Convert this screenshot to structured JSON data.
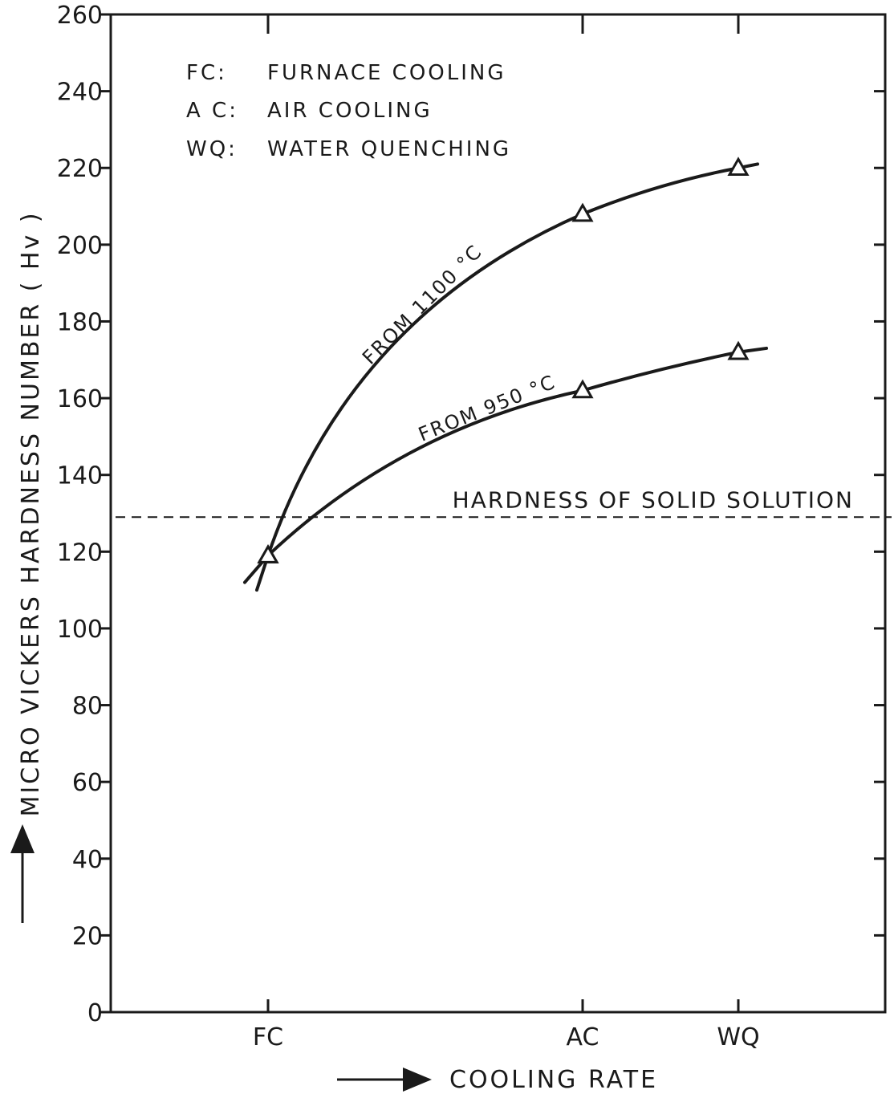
{
  "chart_data": {
    "type": "line",
    "xlabel": "COOLING RATE",
    "ylabel": "MICRO VICKERS HARDNESS NUMBER ( Hv )",
    "ylim": [
      0,
      260
    ],
    "yticks": [
      "0",
      "20",
      "40",
      "60",
      "80",
      "100",
      "120",
      "140",
      "160",
      "180",
      "200",
      "220",
      "240",
      "260"
    ],
    "categories": [
      "FC",
      "AC",
      "WQ"
    ],
    "series": [
      {
        "name": "FROM 1100 °C",
        "values": [
          119,
          208,
          220
        ]
      },
      {
        "name": "FROM 950 °C",
        "values": [
          119,
          162,
          172
        ]
      }
    ],
    "reference_line": {
      "label": "HARDNESS OF SOLID SOLUTION",
      "value": 129
    },
    "legend": {
      "placement": "top-left",
      "entries": [
        {
          "abbr": "FC:",
          "text": "FURNACE COOLING"
        },
        {
          "abbr": "A C:",
          "text": "AIR COOLING"
        },
        {
          "abbr": "WQ:",
          "text": "WATER QUENCHING"
        }
      ]
    },
    "grid": false,
    "marker": "open-triangle",
    "line_color": "#1a1a1a"
  }
}
